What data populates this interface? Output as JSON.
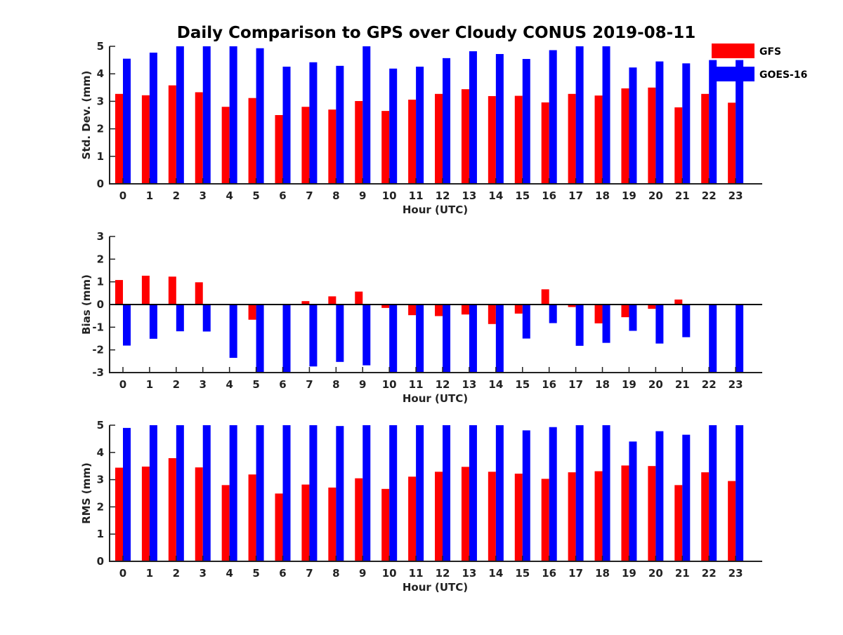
{
  "title": "Daily Comparison to GPS over Cloudy CONUS 2019-08-11",
  "legend": [
    {
      "name": "GFS",
      "color": "#ff0000"
    },
    {
      "name": "GOES-16",
      "color": "#0000ff"
    }
  ],
  "chart_data": [
    {
      "type": "bar",
      "ylabel": "Std. Dev. (mm)",
      "xlabel": "Hour (UTC)",
      "ylim": [
        0,
        5
      ],
      "yticks": [
        "0",
        "1",
        "2",
        "3",
        "4",
        "5"
      ],
      "categories": [
        "0",
        "1",
        "2",
        "3",
        "4",
        "5",
        "6",
        "7",
        "8",
        "9",
        "10",
        "11",
        "12",
        "13",
        "14",
        "15",
        "16",
        "17",
        "18",
        "19",
        "20",
        "21",
        "22",
        "23"
      ],
      "series": [
        {
          "name": "GFS",
          "color": "#ff0000",
          "values": [
            3.27,
            3.22,
            3.58,
            3.33,
            2.8,
            3.12,
            2.5,
            2.8,
            2.7,
            3.01,
            2.65,
            3.06,
            3.27,
            3.44,
            3.19,
            3.2,
            2.96,
            3.27,
            3.21,
            3.47,
            3.5,
            2.78,
            3.27,
            2.95
          ]
        },
        {
          "name": "GOES-16",
          "color": "#0000ff",
          "values": [
            4.55,
            4.77,
            5.0,
            5.0,
            5.0,
            4.93,
            4.26,
            4.42,
            4.29,
            5.0,
            4.19,
            4.26,
            4.57,
            4.82,
            4.72,
            4.54,
            4.86,
            5.0,
            5.0,
            4.23,
            4.45,
            4.38,
            4.5,
            4.5
          ]
        }
      ]
    },
    {
      "type": "bar",
      "ylabel": "Bias (mm)",
      "xlabel": "Hour (UTC)",
      "ylim": [
        -3,
        3
      ],
      "yticks": [
        "-3",
        "-2",
        "-1",
        "0",
        "1",
        "2",
        "3"
      ],
      "categories": [
        "0",
        "1",
        "2",
        "3",
        "4",
        "5",
        "6",
        "7",
        "8",
        "9",
        "10",
        "11",
        "12",
        "13",
        "14",
        "15",
        "16",
        "17",
        "18",
        "19",
        "20",
        "21",
        "22",
        "23"
      ],
      "series": [
        {
          "name": "GFS",
          "color": "#ff0000",
          "values": [
            1.08,
            1.27,
            1.23,
            0.98,
            0.0,
            -0.67,
            -0.03,
            0.15,
            0.36,
            0.57,
            -0.15,
            -0.47,
            -0.51,
            -0.44,
            -0.86,
            -0.4,
            0.67,
            -0.11,
            -0.83,
            -0.56,
            -0.19,
            0.22,
            -0.03,
            0.0
          ]
        },
        {
          "name": "GOES-16",
          "color": "#0000ff",
          "values": [
            -1.81,
            -1.51,
            -1.18,
            -1.19,
            -2.35,
            -3.0,
            -3.0,
            -2.73,
            -2.53,
            -2.68,
            -3.0,
            -3.0,
            -3.0,
            -3.0,
            -3.0,
            -1.5,
            -0.82,
            -1.82,
            -1.69,
            -1.16,
            -1.72,
            -1.44,
            -3.0,
            -3.0
          ]
        }
      ]
    },
    {
      "type": "bar",
      "ylabel": "RMS (mm)",
      "xlabel": "Hour (UTC)",
      "ylim": [
        0,
        5
      ],
      "yticks": [
        "0",
        "1",
        "2",
        "3",
        "4",
        "5"
      ],
      "categories": [
        "0",
        "1",
        "2",
        "3",
        "4",
        "5",
        "6",
        "7",
        "8",
        "9",
        "10",
        "11",
        "12",
        "13",
        "14",
        "15",
        "16",
        "17",
        "18",
        "19",
        "20",
        "21",
        "22",
        "23"
      ],
      "series": [
        {
          "name": "GFS",
          "color": "#ff0000",
          "values": [
            3.44,
            3.48,
            3.79,
            3.45,
            2.8,
            3.19,
            2.49,
            2.82,
            2.71,
            3.05,
            2.66,
            3.11,
            3.29,
            3.47,
            3.29,
            3.22,
            3.03,
            3.27,
            3.31,
            3.52,
            3.5,
            2.8,
            3.27,
            2.95
          ]
        },
        {
          "name": "GOES-16",
          "color": "#0000ff",
          "values": [
            4.9,
            5.0,
            5.0,
            5.0,
            5.0,
            5.0,
            5.0,
            5.0,
            4.97,
            5.0,
            5.0,
            5.0,
            5.0,
            5.0,
            5.0,
            4.81,
            4.93,
            5.0,
            5.0,
            4.4,
            4.78,
            4.65,
            5.0,
            5.0
          ]
        }
      ]
    }
  ]
}
